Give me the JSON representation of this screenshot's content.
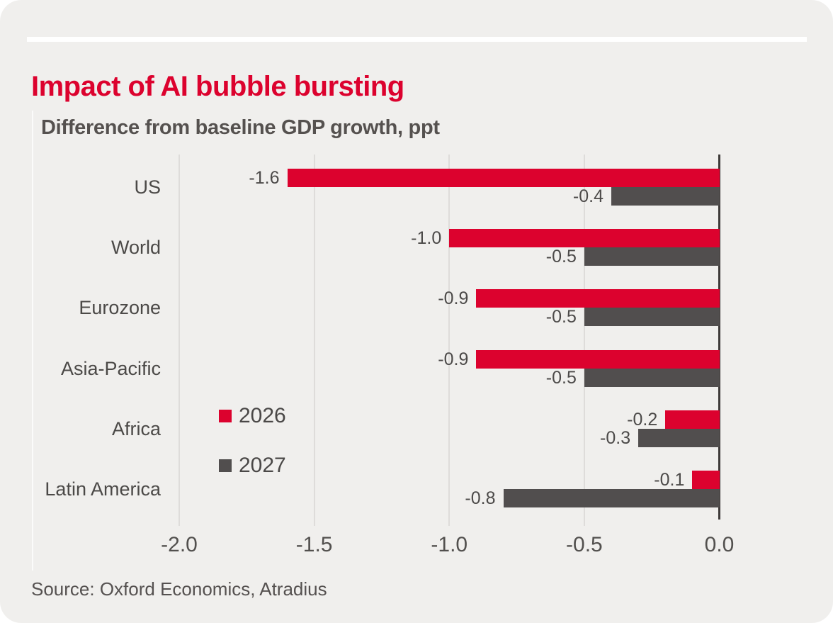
{
  "header": {
    "title": "Impact of AI bubble bursting",
    "subtitle": "Difference from baseline GDP growth, ppt"
  },
  "footer": {
    "source": "Source: Oxford Economics, Atradius"
  },
  "colors": {
    "accent_red": "#dc022e",
    "dark_gray_bar": "#514e4e",
    "card_background": "#f0efed",
    "axis_line": "#3e3a39",
    "gridline": "#dedcda",
    "text_gray": "#4c4a49"
  },
  "legend": {
    "items": [
      {
        "label": "2026",
        "color": "#dc022e"
      },
      {
        "label": "2027",
        "color": "#514e4e"
      }
    ]
  },
  "chart_data": {
    "type": "bar",
    "orientation": "horizontal",
    "title": "Impact of AI bubble bursting",
    "subtitle": "Difference from baseline GDP growth, ppt",
    "categories": [
      "US",
      "World",
      "Eurozone",
      "Asia-Pacific",
      "Africa",
      "Latin America"
    ],
    "series": [
      {
        "name": "2026",
        "color": "#dc022e",
        "values": [
          -1.6,
          -1.0,
          -0.9,
          -0.9,
          -0.2,
          -0.1
        ]
      },
      {
        "name": "2027",
        "color": "#514e4e",
        "values": [
          -0.4,
          -0.5,
          -0.5,
          -0.5,
          -0.3,
          -0.8
        ]
      }
    ],
    "xlabel": "",
    "ylabel": "",
    "xlim": [
      -2.0,
      0.0
    ],
    "xticks": [
      -2.0,
      -1.5,
      -1.0,
      -0.5,
      0.0
    ],
    "xtick_labels": [
      "-2.0",
      "-1.5",
      "-1.0",
      "-0.5",
      "0.0"
    ],
    "grid": "vertical-gridlines-on",
    "legend_position": "inside-left-middle",
    "value_labels": "left-of-bar, one decimal",
    "source": "Source: Oxford Economics, Atradius"
  }
}
